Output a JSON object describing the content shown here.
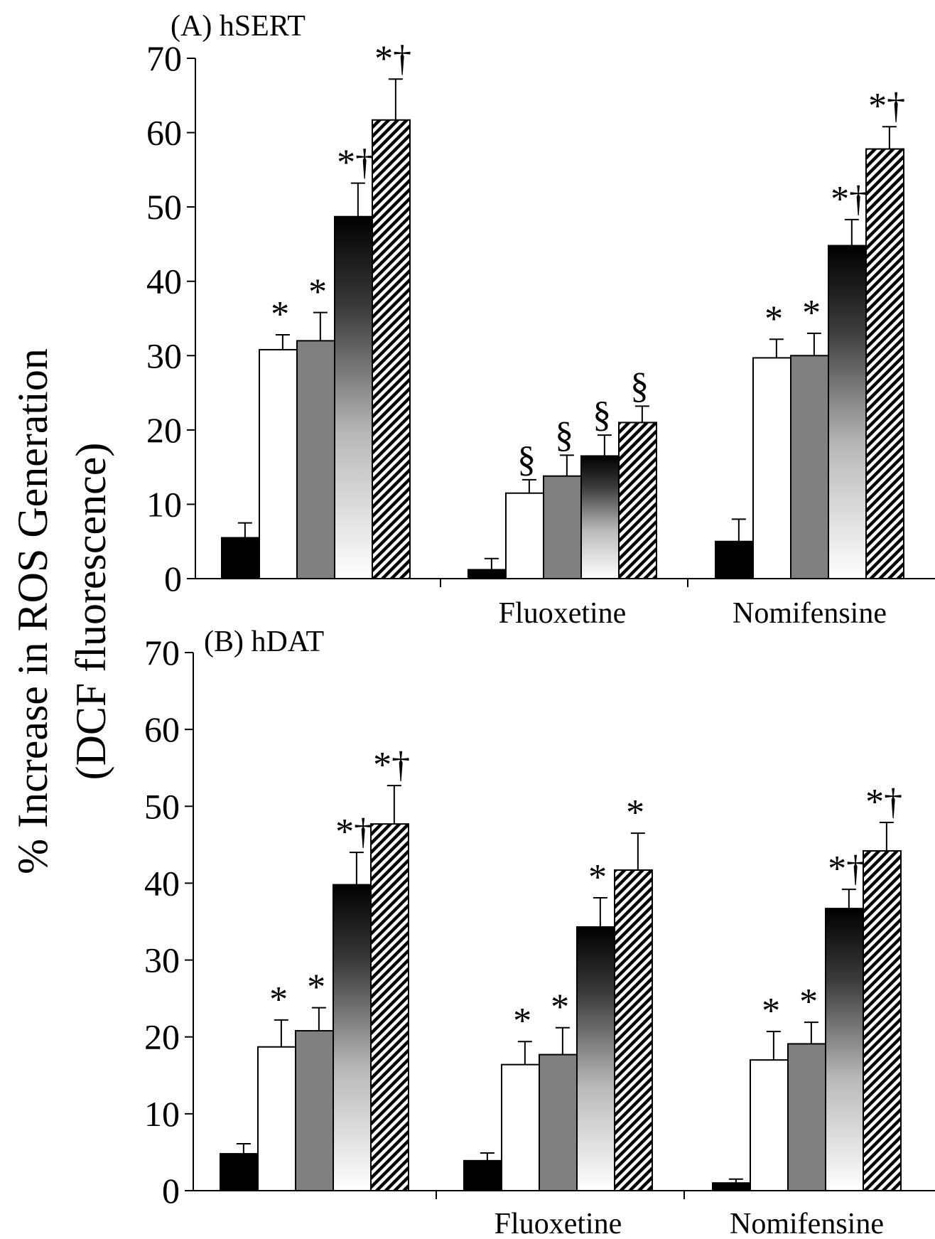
{
  "ylabel_line1": "% Increase in ROS Generation",
  "ylabel_line2": "(DCF fluorescence)",
  "chart_data": [
    {
      "type": "bar",
      "title": "(A) hSERT",
      "ylim": [
        0,
        70
      ],
      "yticks": [
        "0",
        "10",
        "20",
        "30",
        "40",
        "50",
        "60",
        "70"
      ],
      "groups": [
        "",
        "Fluoxetine",
        "Nomifensine"
      ],
      "series": [
        {
          "fill": "solid-black",
          "values": [
            5.5,
            1.2,
            5.0
          ],
          "errors": [
            2.0,
            1.5,
            3.0
          ],
          "annotations": [
            "",
            "",
            ""
          ]
        },
        {
          "fill": "white",
          "values": [
            30.8,
            11.5,
            29.7
          ],
          "errors": [
            2.0,
            1.8,
            2.5
          ],
          "annotations": [
            "*",
            "§",
            "*"
          ]
        },
        {
          "fill": "gray",
          "values": [
            32.0,
            13.8,
            30.0
          ],
          "errors": [
            3.8,
            2.8,
            3.0
          ],
          "annotations": [
            "*",
            "§",
            "*"
          ]
        },
        {
          "fill": "gradient",
          "values": [
            48.7,
            16.5,
            44.8
          ],
          "errors": [
            4.5,
            2.8,
            3.5
          ],
          "annotations": [
            "*†",
            "§",
            "*†"
          ]
        },
        {
          "fill": "hatched",
          "values": [
            61.7,
            21.0,
            57.8
          ],
          "errors": [
            5.5,
            2.2,
            3.0
          ],
          "annotations": [
            "*†",
            "§",
            "*†"
          ]
        }
      ]
    },
    {
      "type": "bar",
      "title": "(B) hDAT",
      "ylim": [
        0,
        70
      ],
      "yticks": [
        "0",
        "10",
        "20",
        "30",
        "40",
        "50",
        "60",
        "70"
      ],
      "groups": [
        "",
        "Fluoxetine",
        "Nomifensine"
      ],
      "series": [
        {
          "fill": "solid-black",
          "values": [
            4.8,
            3.9,
            1.0
          ],
          "errors": [
            1.3,
            1.0,
            0.5
          ],
          "annotations": [
            "",
            "",
            ""
          ]
        },
        {
          "fill": "white",
          "values": [
            18.7,
            16.4,
            17.0
          ],
          "errors": [
            3.5,
            3.0,
            3.7
          ],
          "annotations": [
            "*",
            "*",
            "*"
          ]
        },
        {
          "fill": "gray",
          "values": [
            20.8,
            17.7,
            19.1
          ],
          "errors": [
            3.0,
            3.5,
            2.8
          ],
          "annotations": [
            "*",
            "*",
            "*"
          ]
        },
        {
          "fill": "gradient",
          "values": [
            39.8,
            34.3,
            36.7
          ],
          "errors": [
            4.2,
            3.8,
            2.5
          ],
          "annotations": [
            "*†",
            "*",
            "*†"
          ]
        },
        {
          "fill": "hatched",
          "values": [
            47.7,
            41.7,
            44.2
          ],
          "errors": [
            5.0,
            4.8,
            3.7
          ],
          "annotations": [
            "*†",
            "*",
            "*†"
          ]
        }
      ]
    }
  ]
}
